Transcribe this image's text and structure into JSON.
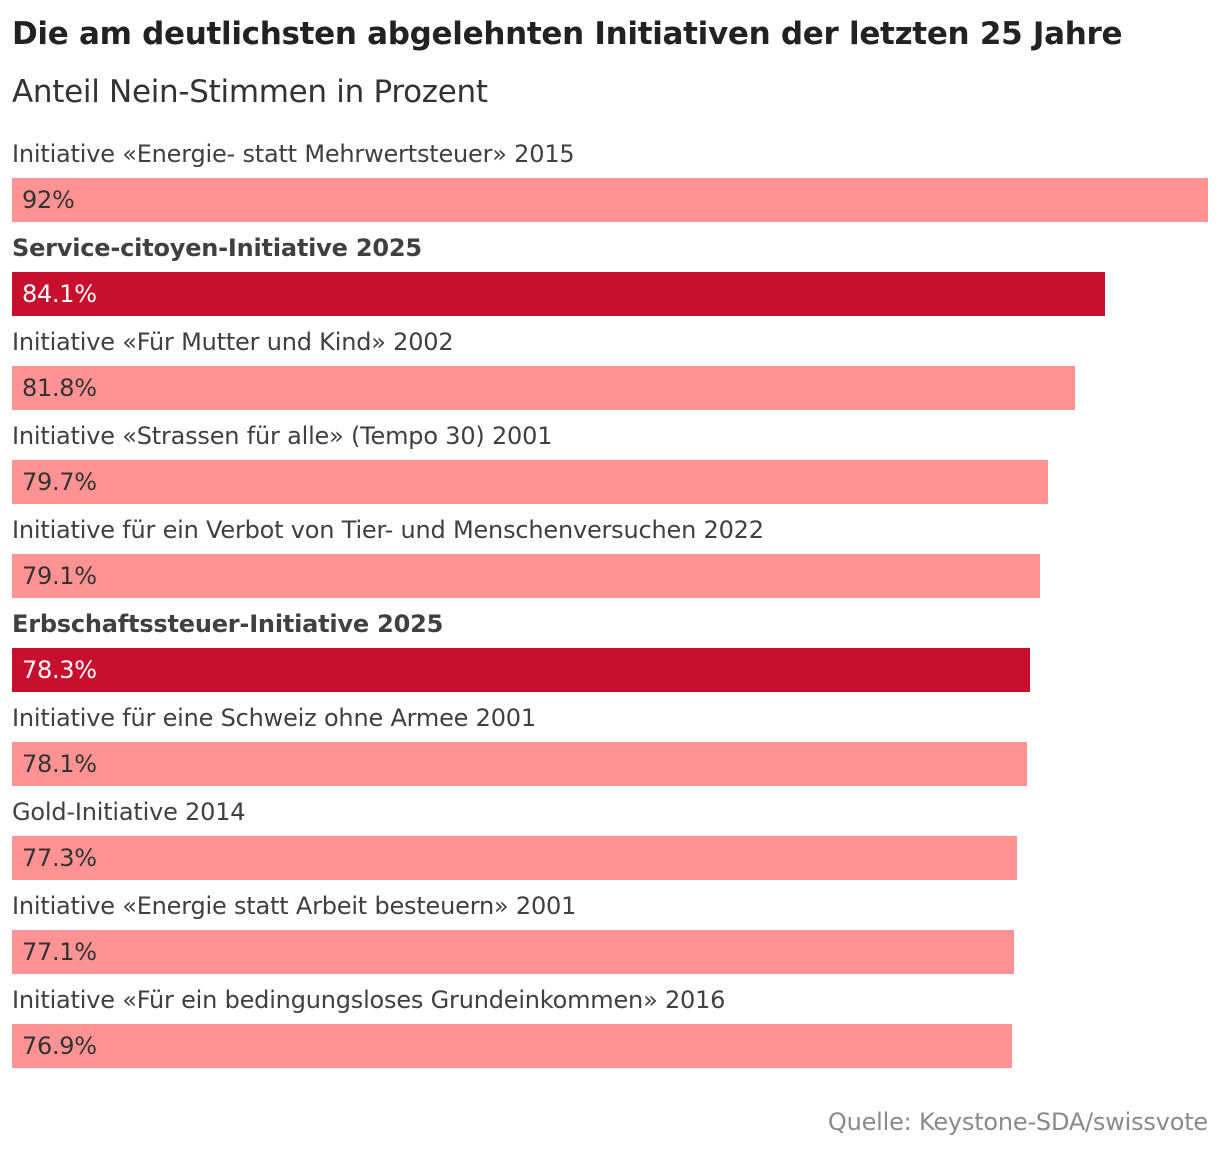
{
  "chart_data": {
    "type": "bar",
    "orientation": "horizontal",
    "title": "Die am deutlichsten abgelehnten Initiativen der letzten 25 Jahre",
    "subtitle": "Anteil Nein-Stimmen in Prozent",
    "source": "Quelle: Keystone-SDA/swissvote",
    "xlim": [
      0,
      92
    ],
    "categories": [
      "Initiative «Energie- statt Mehrwertsteuer» 2015",
      "Service-citoyen-Initiative 2025",
      "Initiative «Für Mutter und Kind» 2002",
      "Initiative «Strassen für alle» (Tempo 30) 2001",
      "Initiative für ein Verbot von Tier- und Menschenversuchen 2022",
      "Erbschaftssteuer-Initiative 2025",
      "Initiative für eine Schweiz ohne Armee 2001",
      "Gold-Initiative 2014",
      "Initiative «Energie statt Arbeit besteuern» 2001",
      "Initiative «Für ein bedingungsloses Grundeinkommen» 2016"
    ],
    "values": [
      92,
      84.1,
      81.8,
      79.7,
      79.1,
      78.3,
      78.1,
      77.3,
      77.1,
      76.9
    ],
    "value_labels": [
      "92%",
      "84.1%",
      "81.8%",
      "79.7%",
      "79.1%",
      "78.3%",
      "78.1%",
      "77.3%",
      "77.1%",
      "76.9%"
    ],
    "highlighted": [
      false,
      true,
      false,
      false,
      false,
      true,
      false,
      false,
      false,
      false
    ],
    "colors": {
      "default": "#ff9393",
      "highlight": "#c8102e"
    }
  }
}
